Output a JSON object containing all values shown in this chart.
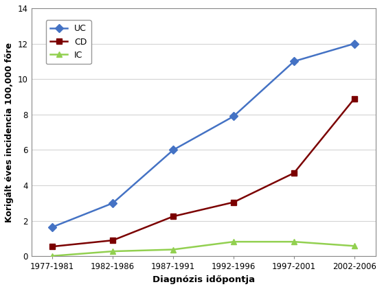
{
  "categories": [
    "1977-1981",
    "1982-1986",
    "1987-1991",
    "1992-1996",
    "1997-2001",
    "2002-2006"
  ],
  "UC": [
    1.65,
    3.0,
    6.0,
    7.9,
    11.0,
    12.0
  ],
  "CD": [
    0.55,
    0.9,
    2.25,
    3.05,
    4.7,
    8.9
  ],
  "IC": [
    0.02,
    0.28,
    0.38,
    0.82,
    0.82,
    0.58
  ],
  "UC_color": "#4472C4",
  "CD_color": "#7B0000",
  "IC_color": "#92D050",
  "UC_marker": "D",
  "CD_marker": "s",
  "IC_marker": "^",
  "xlabel": "Diagnózis időpontja",
  "ylabel": "Korigált éves incidencia 100,000 főre",
  "ylim": [
    0,
    14
  ],
  "yticks": [
    0,
    2,
    4,
    6,
    8,
    10,
    12,
    14
  ],
  "legend_labels": [
    "UC",
    "CD",
    "IC"
  ],
  "background_color": "#FFFFFF",
  "grid_color": "#D3D3D3",
  "line_width": 1.8,
  "marker_size": 6,
  "tick_fontsize": 8.5,
  "label_fontsize": 9.5,
  "legend_fontsize": 9
}
